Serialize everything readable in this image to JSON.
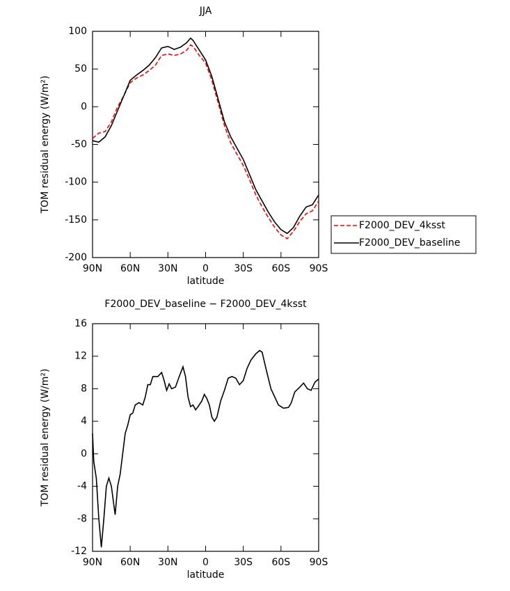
{
  "chart_data": [
    {
      "type": "line",
      "title": "JJA",
      "x_label": "latitude",
      "y_label": "TOM residual energy (W/m²)",
      "x": [
        90,
        85,
        80,
        75,
        70,
        65,
        60,
        55,
        50,
        45,
        40,
        35,
        30,
        25,
        20,
        15,
        12,
        10,
        5,
        0,
        -5,
        -10,
        -15,
        -20,
        -25,
        -30,
        -35,
        -40,
        -45,
        -50,
        -55,
        -60,
        -65,
        -70,
        -75,
        -80,
        -85,
        -90
      ],
      "series": [
        {
          "name": "F2000_DEV_4ksst",
          "color": "#ff0000",
          "dash": true,
          "values": [
            -42,
            -35,
            -33,
            -20,
            0,
            15,
            32,
            38,
            42,
            48,
            55,
            68,
            70,
            68,
            70,
            75,
            82,
            80,
            68,
            58,
            35,
            5,
            -25,
            -48,
            -63,
            -78,
            -97,
            -117,
            -133,
            -147,
            -160,
            -170,
            -175,
            -165,
            -152,
            -142,
            -138,
            -125
          ]
        },
        {
          "name": "F2000_DEV_baseline",
          "color": "#000000",
          "dash": false,
          "values": [
            -45,
            -47,
            -40,
            -25,
            -5,
            15,
            35,
            42,
            48,
            55,
            65,
            78,
            80,
            76,
            79,
            85,
            91,
            88,
            75,
            62,
            40,
            10,
            -20,
            -40,
            -55,
            -70,
            -90,
            -110,
            -125,
            -140,
            -153,
            -163,
            -168,
            -160,
            -145,
            -133,
            -130,
            -117
          ]
        }
      ],
      "xlim": [
        90,
        -90
      ],
      "xticks": [
        {
          "value": 90,
          "label": "90N"
        },
        {
          "value": 60,
          "label": "60N"
        },
        {
          "value": 30,
          "label": "30N"
        },
        0,
        {
          "value": -30,
          "label": "30S"
        },
        {
          "value": -60,
          "label": "60S"
        },
        {
          "value": -90,
          "label": "90S"
        }
      ],
      "ylim": [
        -200,
        100
      ],
      "yticks": [
        -200,
        -150,
        -100,
        -50,
        0,
        50,
        100
      ],
      "legend": "right"
    },
    {
      "type": "line",
      "title": "F2000_DEV_baseline − F2000_DEV_4ksst",
      "x_label": "latitude",
      "y_label": "TOM residual energy (W/m²)",
      "x": [
        90,
        89,
        87,
        85,
        83,
        81,
        79,
        77,
        75,
        72,
        70,
        68,
        66,
        64,
        62,
        60,
        58,
        56,
        53,
        50,
        48,
        46,
        44,
        42,
        38,
        35,
        33,
        31,
        29,
        27,
        24,
        21,
        18,
        16,
        14,
        12,
        10,
        8,
        6,
        3,
        1,
        -1,
        -3,
        -5,
        -7,
        -9,
        -12,
        -15,
        -18,
        -21,
        -24,
        -27,
        -30,
        -33,
        -36,
        -40,
        -43,
        -45,
        -48,
        -52,
        -55,
        -58,
        -62,
        -66,
        -68,
        -71,
        -75,
        -78,
        -81,
        -84,
        -87,
        -90
      ],
      "series": [
        {
          "color": "#000000",
          "values": [
            2.5,
            -1,
            -3,
            -8,
            -11.5,
            -8,
            -4,
            -3,
            -4,
            -7.5,
            -4,
            -2.5,
            0,
            2.5,
            3.5,
            4.8,
            5,
            6,
            6.3,
            6,
            7,
            8.5,
            8.5,
            9.5,
            9.5,
            10,
            9,
            7.8,
            8.6,
            8,
            8.2,
            9.5,
            10.7,
            9.5,
            7,
            5.8,
            6,
            5.4,
            5.8,
            6.5,
            7.3,
            6.8,
            6,
            4.5,
            4,
            4.5,
            6.5,
            7.8,
            9.3,
            9.5,
            9.3,
            8.5,
            9,
            10.5,
            11.5,
            12.3,
            12.7,
            12.5,
            10.5,
            8,
            7,
            6,
            5.6,
            5.7,
            6.2,
            7.6,
            8.2,
            8.7,
            8,
            7.8,
            8.8,
            9.2
          ]
        }
      ],
      "xlim": [
        90,
        -90
      ],
      "xticks": [
        {
          "value": 90,
          "label": "90N"
        },
        {
          "value": 60,
          "label": "60N"
        },
        {
          "value": 30,
          "label": "30N"
        },
        0,
        {
          "value": -30,
          "label": "30S"
        },
        {
          "value": -60,
          "label": "60S"
        },
        {
          "value": -90,
          "label": "90S"
        }
      ],
      "ylim": [
        -12,
        16
      ],
      "yticks": [
        -12,
        -8,
        -4,
        0,
        4,
        8,
        12,
        16
      ]
    }
  ]
}
